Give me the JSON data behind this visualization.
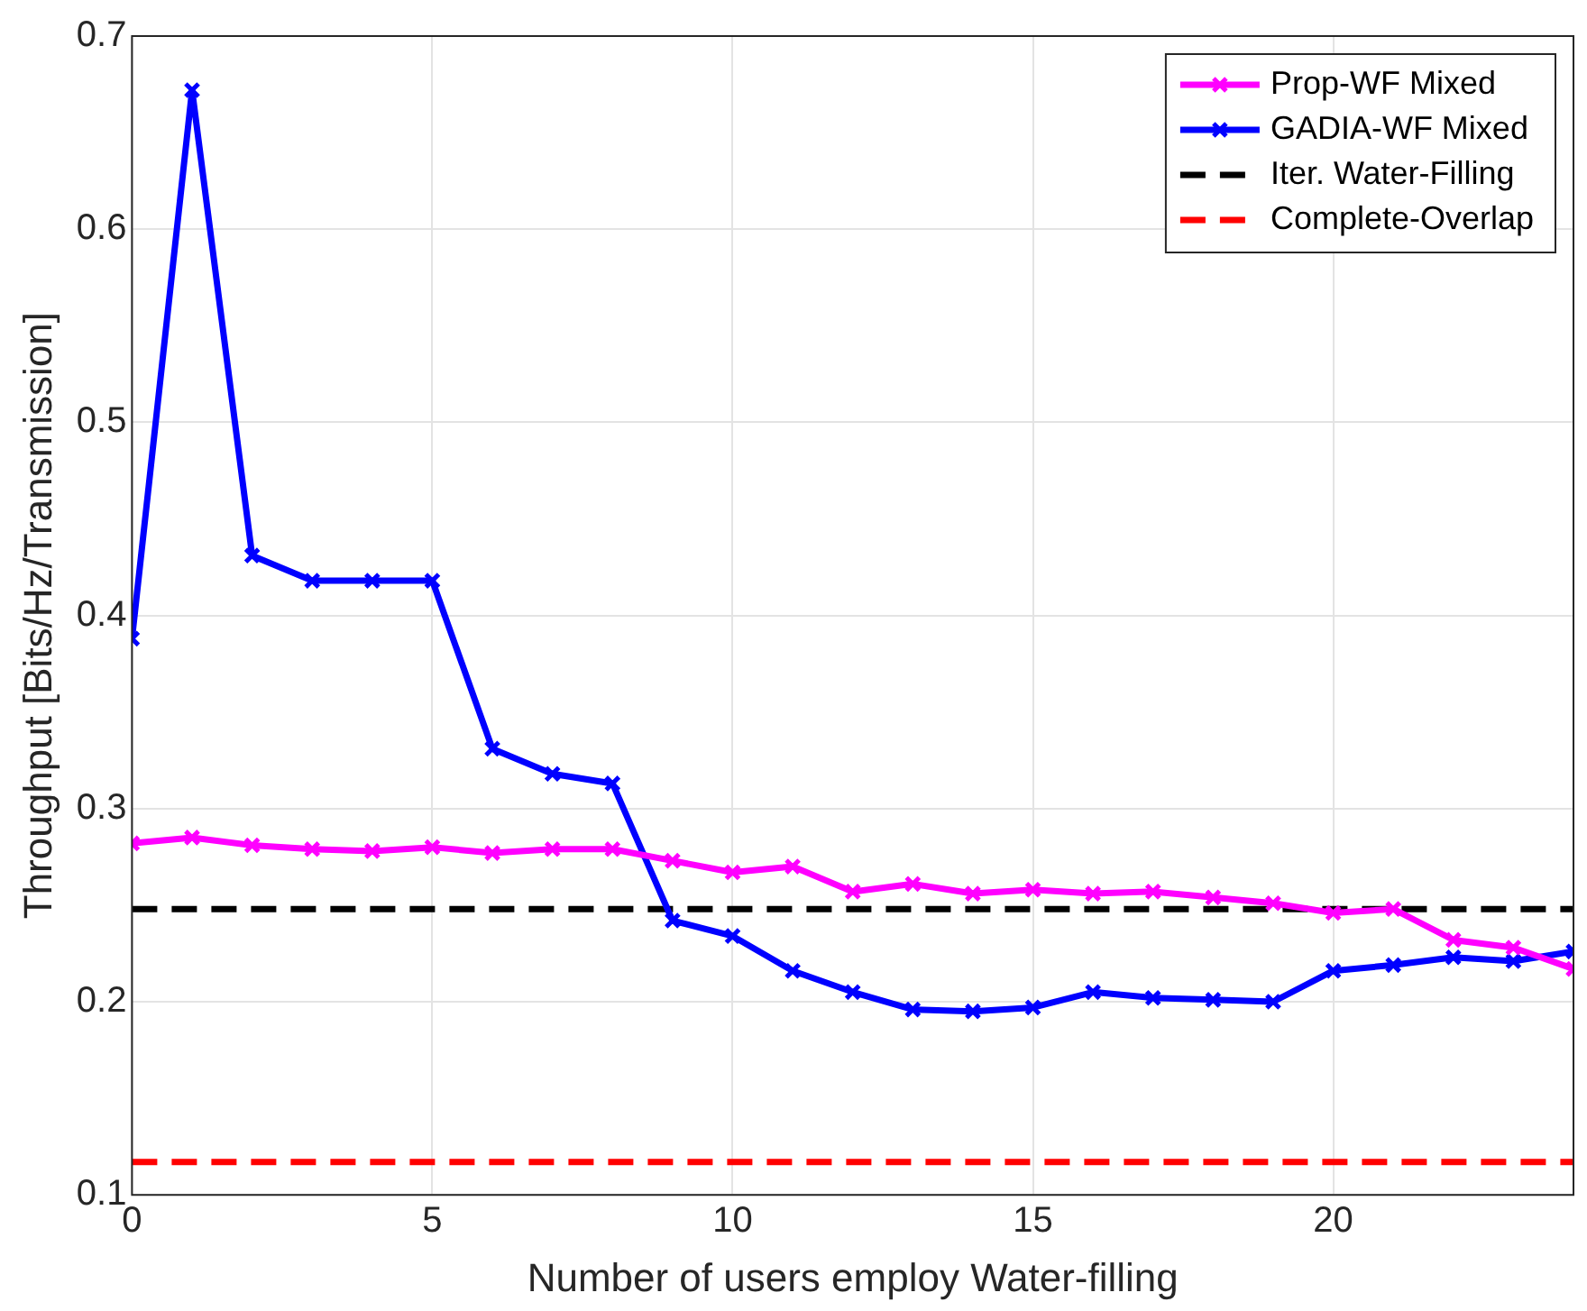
{
  "chart_data": {
    "type": "line",
    "xlabel": "Number of users employ Water-filling",
    "ylabel": "Throughput [Bits/Hz/Transmission]",
    "x": [
      0,
      1,
      2,
      3,
      4,
      5,
      6,
      7,
      8,
      9,
      10,
      11,
      12,
      13,
      14,
      15,
      16,
      17,
      18,
      19,
      20,
      21,
      22,
      23,
      24
    ],
    "series": [
      {
        "name": "Prop-WF Mixed",
        "color": "#ff00ff",
        "marker": "cross",
        "values": [
          0.282,
          0.285,
          0.281,
          0.279,
          0.278,
          0.28,
          0.277,
          0.279,
          0.279,
          0.273,
          0.267,
          0.27,
          0.257,
          0.261,
          0.256,
          0.258,
          0.256,
          0.257,
          0.254,
          0.251,
          0.246,
          0.248,
          0.232,
          0.228,
          0.217
        ]
      },
      {
        "name": "GADIA-WF Mixed",
        "color": "#0000ff",
        "marker": "cross",
        "values": [
          0.388,
          0.672,
          0.431,
          0.418,
          0.418,
          0.418,
          0.331,
          0.318,
          0.313,
          0.242,
          0.234,
          0.216,
          0.205,
          0.196,
          0.195,
          0.197,
          0.205,
          0.202,
          0.201,
          0.2,
          0.216,
          0.219,
          0.223,
          0.221,
          0.226
        ]
      }
    ],
    "ref_lines": [
      {
        "axis": "y",
        "value": 0.248,
        "label": "Iter. Water-Filling",
        "color": "#000000",
        "line_style": "dashed"
      },
      {
        "axis": "y",
        "value": 0.117,
        "label": "Complete-Overlap",
        "color": "#ff0000",
        "line_style": "dashed"
      }
    ],
    "xlim": [
      0,
      24
    ],
    "xticks": [
      0,
      5,
      10,
      15,
      20
    ],
    "ylim": [
      0.1,
      0.7
    ],
    "yticks": [
      0.1,
      0.2,
      0.3,
      0.4,
      0.5,
      0.6,
      0.7
    ],
    "grid": true,
    "legend": "top right",
    "line_style": "solid"
  }
}
